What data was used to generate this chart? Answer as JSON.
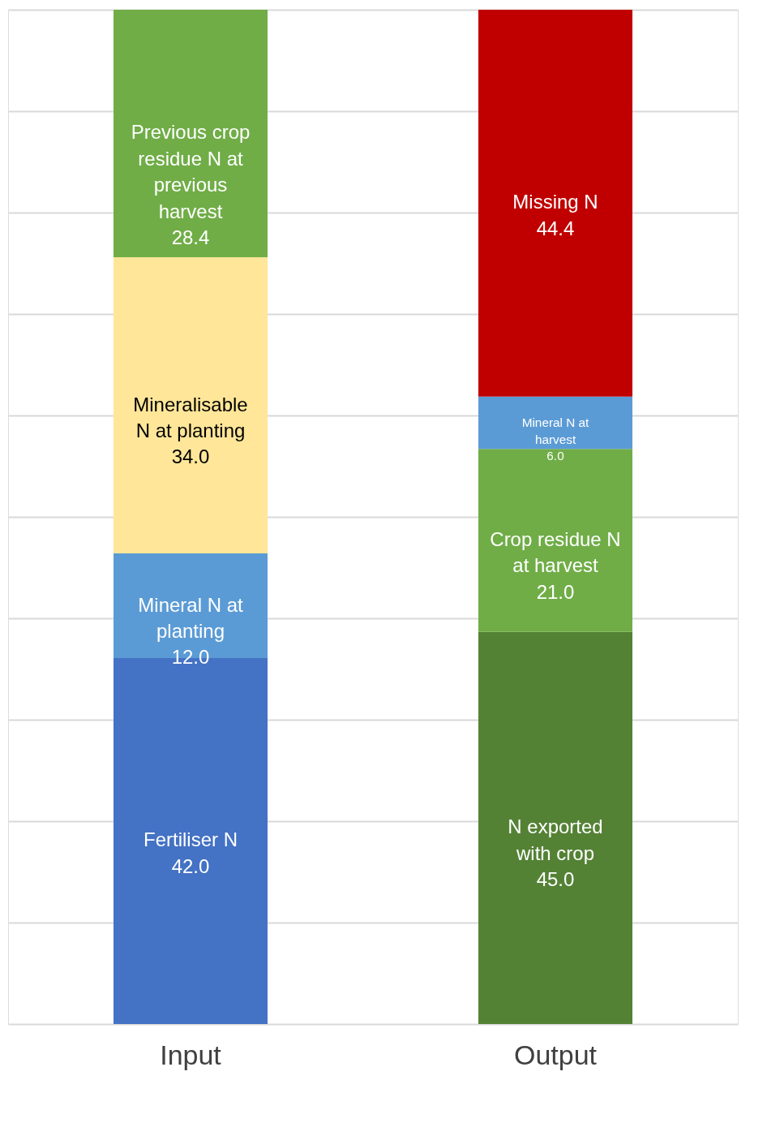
{
  "chart_data": {
    "type": "bar",
    "stacked": true,
    "categories": [
      "Input",
      "Output"
    ],
    "ylim": [
      0,
      116.4
    ],
    "yticks": [
      {
        "value": 0,
        "label": null
      },
      {
        "value": 11.64,
        "label": null
      },
      {
        "value": 23.28,
        "label": null
      },
      {
        "value": 34.92,
        "label": null
      },
      {
        "value": 46.56,
        "label": null
      },
      {
        "value": 58.2,
        "label": null
      },
      {
        "value": 69.84,
        "label": null
      },
      {
        "value": 81.48,
        "label": null
      },
      {
        "value": 93.12,
        "label": null
      },
      {
        "value": 104.76,
        "label": null
      },
      {
        "value": 116.4,
        "label": null
      }
    ],
    "grid": "y",
    "series": [
      {
        "name": "Fertiliser N",
        "color": "#4472c4",
        "values": [
          42.0,
          null
        ],
        "value_labels": [
          "42.0",
          null
        ]
      },
      {
        "name": "Mineral N at planting",
        "color": "#5b9bd5",
        "values": [
          12.0,
          null
        ],
        "value_labels": [
          "12.0",
          null
        ]
      },
      {
        "name": "Mineralisable N at planting",
        "color": "#ffe699",
        "values": [
          34.0,
          null
        ],
        "value_labels": [
          "34.0",
          null
        ]
      },
      {
        "name": "Previous crop residue N at previous harvest",
        "color": "#70ad47",
        "values": [
          28.4,
          null
        ],
        "value_labels": [
          "28.4",
          null
        ]
      },
      {
        "name": "N exported with crop",
        "color": "#548235",
        "values": [
          null,
          45.0
        ],
        "value_labels": [
          null,
          "45.0"
        ]
      },
      {
        "name": "Crop residue N at harvest",
        "color": "#70ad47",
        "values": [
          null,
          21.0
        ],
        "value_labels": [
          null,
          "21.0"
        ]
      },
      {
        "name": "Mineral N at harvest",
        "color": "#5b9bd5",
        "values": [
          null,
          6.0
        ],
        "value_labels": [
          null,
          "6.0"
        ]
      },
      {
        "name": "Missing N",
        "color": "#c00000",
        "values": [
          null,
          44.4
        ],
        "value_labels": [
          null,
          "44.4"
        ]
      }
    ]
  }
}
